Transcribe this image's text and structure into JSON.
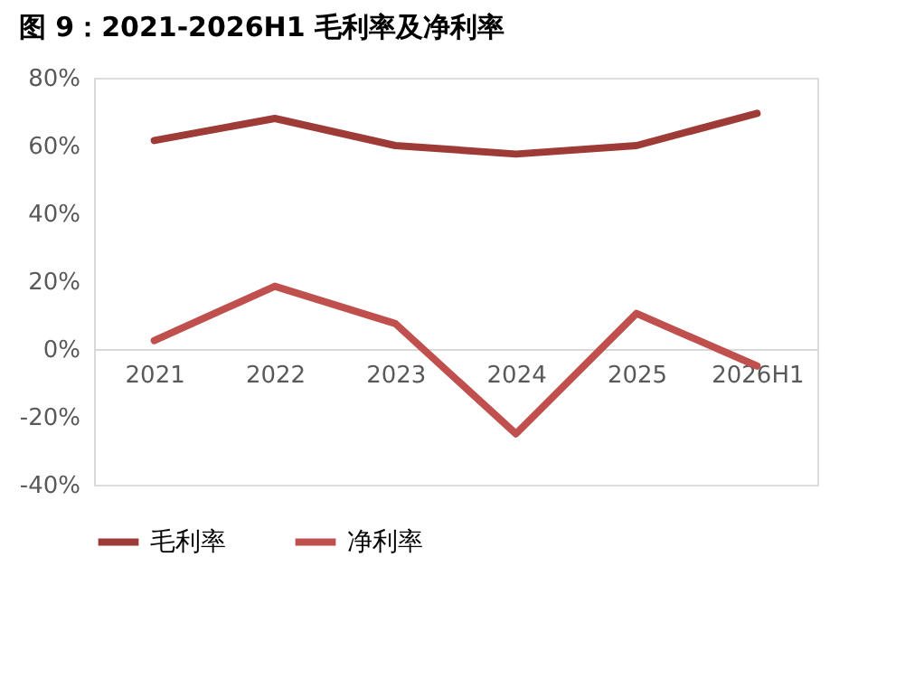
{
  "chart_data": {
    "type": "line",
    "title": "图 9：2021-2026H1 毛利率及净利率",
    "categories": [
      "2021",
      "2022",
      "2023",
      "2024",
      "2025",
      "2026H1"
    ],
    "series": [
      {
        "name": "毛利率",
        "color": "#9e3b37",
        "values": [
          61.5,
          68,
          60,
          57.5,
          60,
          69.5
        ]
      },
      {
        "name": "净利率",
        "color": "#c0504d",
        "values": [
          2.5,
          18.5,
          7.5,
          -25,
          10.5,
          -5
        ]
      }
    ],
    "ylim": [
      -40,
      80
    ],
    "yticks": [
      {
        "value": -40,
        "label": "-40%"
      },
      {
        "value": -20,
        "label": "-20%"
      },
      {
        "value": 0,
        "label": "0%"
      },
      {
        "value": 20,
        "label": "20%"
      },
      {
        "value": 40,
        "label": "40%"
      },
      {
        "value": 60,
        "label": "60%"
      },
      {
        "value": 80,
        "label": "80%"
      }
    ],
    "grid": false,
    "legend": "bottom",
    "line_style": "solid"
  }
}
